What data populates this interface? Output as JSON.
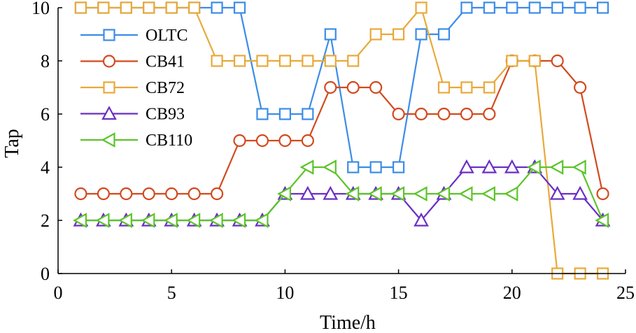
{
  "chart_data": {
    "type": "line",
    "title": "",
    "xlabel": "Time/h",
    "ylabel": "Tap",
    "xlim": [
      0,
      25
    ],
    "ylim": [
      0,
      10
    ],
    "xticks": [
      0,
      5,
      10,
      15,
      20,
      25
    ],
    "yticks": [
      0,
      2,
      4,
      6,
      8,
      10
    ],
    "x": [
      1,
      2,
      3,
      4,
      5,
      6,
      7,
      8,
      9,
      10,
      11,
      12,
      13,
      14,
      15,
      16,
      17,
      18,
      19,
      20,
      21,
      22,
      23,
      24
    ],
    "legend_position": "top-left",
    "series": [
      {
        "name": "OLTC",
        "color": "#3c8ce6",
        "marker": "square",
        "values": [
          10,
          10,
          10,
          10,
          10,
          10,
          10,
          10,
          6,
          6,
          6,
          9,
          4,
          4,
          4,
          9,
          9,
          10,
          10,
          10,
          10,
          10,
          10,
          10
        ]
      },
      {
        "name": "CB41",
        "color": "#d24a1e",
        "marker": "circle",
        "values": [
          3,
          3,
          3,
          3,
          3,
          3,
          3,
          5,
          5,
          5,
          5,
          7,
          7,
          7,
          6,
          6,
          6,
          6,
          6,
          8,
          8,
          8,
          7,
          3
        ]
      },
      {
        "name": "CB72",
        "color": "#e8a93a",
        "marker": "square",
        "values": [
          10,
          10,
          10,
          10,
          10,
          10,
          8,
          8,
          8,
          8,
          8,
          8,
          8,
          9,
          9,
          10,
          7,
          7,
          7,
          8,
          8,
          0,
          0,
          0
        ]
      },
      {
        "name": "CB93",
        "color": "#6a2fc4",
        "marker": "triangle-up",
        "values": [
          2,
          2,
          2,
          2,
          2,
          2,
          2,
          2,
          2,
          3,
          3,
          3,
          3,
          3,
          3,
          2,
          3,
          4,
          4,
          4,
          4,
          3,
          3,
          2
        ]
      },
      {
        "name": "CB110",
        "color": "#5cc42a",
        "marker": "triangle-left",
        "values": [
          2,
          2,
          2,
          2,
          2,
          2,
          2,
          2,
          2,
          3,
          4,
          4,
          3,
          3,
          3,
          3,
          3,
          3,
          3,
          3,
          4,
          4,
          4,
          2
        ]
      }
    ]
  }
}
